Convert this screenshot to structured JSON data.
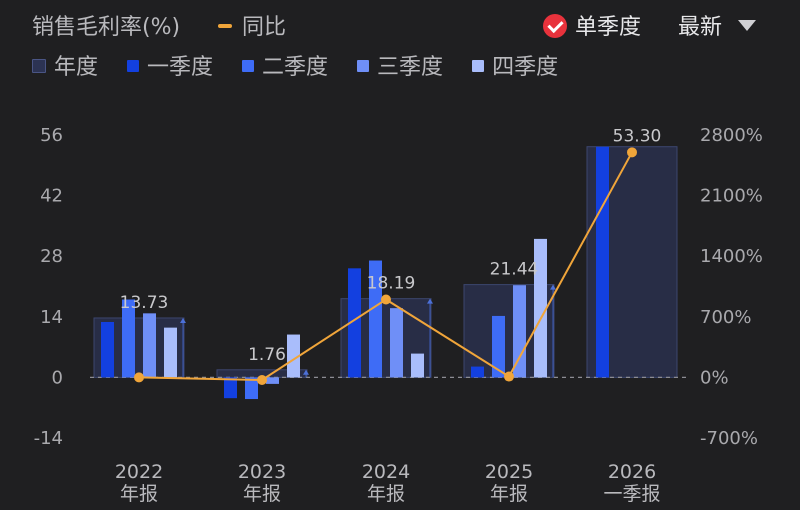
{
  "header": {
    "title": "销售毛利率(%)",
    "yoy_label": "同比",
    "toggle_label": "单季度",
    "dropdown_label": "最新"
  },
  "colors": {
    "annual": "#2c3353",
    "q1": "#1340e0",
    "q2": "#3e6cf6",
    "q3": "#6f8ff7",
    "q4": "#a9bdfb",
    "yoy": "#f0a53a"
  },
  "chart_data": {
    "type": "bar",
    "legend": [
      "年度",
      "一季度",
      "二季度",
      "三季度",
      "四季度"
    ],
    "categories": [
      {
        "year": "2022",
        "period": "年报"
      },
      {
        "year": "2023",
        "period": "年报"
      },
      {
        "year": "2024",
        "period": "年报"
      },
      {
        "year": "2025",
        "period": "年报"
      },
      {
        "year": "2026",
        "period": "一季报"
      }
    ],
    "annual_values": [
      13.73,
      1.76,
      18.19,
      21.44,
      53.3
    ],
    "annual_labels": [
      "13.73",
      "1.76",
      "18.19",
      "21.44",
      "53.30"
    ],
    "series": [
      {
        "name": "一季度",
        "values": [
          12.8,
          -4.8,
          25.2,
          2.5,
          53.3
        ]
      },
      {
        "name": "二季度",
        "values": [
          18.0,
          -5.0,
          27.0,
          14.2,
          null
        ]
      },
      {
        "name": "三季度",
        "values": [
          14.8,
          -1.5,
          16.0,
          21.3,
          null
        ]
      },
      {
        "name": "四季度",
        "values": [
          11.5,
          9.9,
          5.5,
          32.0,
          null
        ]
      }
    ],
    "yoy": {
      "name": "同比",
      "values": [
        0,
        -30,
        900,
        10,
        2600
      ]
    },
    "ylim_left": [
      -14,
      56
    ],
    "left_ticks": [
      "56",
      "42",
      "28",
      "14",
      "0",
      "-14"
    ],
    "left_tick_values": [
      56,
      42,
      28,
      14,
      0,
      -14
    ],
    "ylim_right": [
      -700,
      2800
    ],
    "right_ticks": [
      "2800%",
      "2100%",
      "1400%",
      "700%",
      "0%",
      "-700%"
    ],
    "right_tick_values": [
      2800,
      2100,
      1400,
      700,
      0,
      -700
    ],
    "zero_line": "dashed",
    "legend_position": "top-left"
  }
}
